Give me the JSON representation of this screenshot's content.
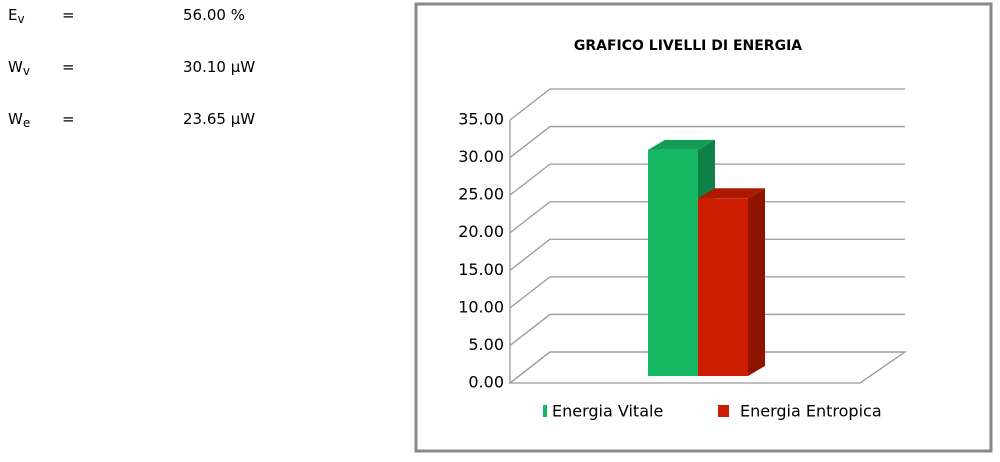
{
  "variables": [
    {
      "symbol": "E",
      "subscript": "v",
      "sign": "=",
      "value": "56.00",
      "unit": "%"
    },
    {
      "symbol": "W",
      "subscript": "v",
      "sign": "=",
      "value": "30.10",
      "unit": "μW"
    },
    {
      "symbol": "W",
      "subscript": "e",
      "sign": "=",
      "value": "23.65",
      "unit": "μW"
    }
  ],
  "chart_data": {
    "type": "bar3d",
    "title": "GRAFICO LIVELLI DI ENERGIA",
    "categories": [
      null
    ],
    "series": [
      {
        "name": "Energia Vitale",
        "color": "#17b864",
        "values": [
          30.1
        ]
      },
      {
        "name": "Energia Entropica",
        "color": "#cc1d00",
        "values": [
          23.65
        ]
      }
    ],
    "ylim": [
      0,
      35
    ],
    "yticks": [
      {
        "value": 0,
        "label": "0.00"
      },
      {
        "value": 5,
        "label": "5.00"
      },
      {
        "value": 10,
        "label": "10.00"
      },
      {
        "value": 15,
        "label": "15.00"
      },
      {
        "value": 20,
        "label": "20.00"
      },
      {
        "value": 25,
        "label": "25.00"
      },
      {
        "value": 30,
        "label": "30.00"
      },
      {
        "value": 35,
        "label": "35.00"
      }
    ],
    "grid": true,
    "legend": "bottom"
  }
}
